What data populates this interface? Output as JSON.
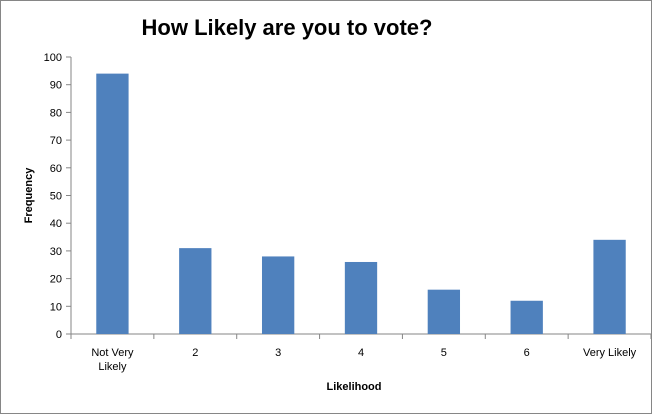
{
  "chart_data": {
    "type": "bar",
    "title": "How Likely are you to vote?",
    "xlabel": "Likelihood",
    "ylabel": "Frequency",
    "categories": [
      [
        "Not Very",
        "Likely"
      ],
      [
        "2"
      ],
      [
        "3"
      ],
      [
        "4"
      ],
      [
        "5"
      ],
      [
        "6"
      ],
      [
        "Very Likely"
      ]
    ],
    "values": [
      94,
      31,
      28,
      26,
      16,
      12,
      34
    ],
    "ylim": [
      0,
      100
    ],
    "yticks": [
      "0",
      "10",
      "20",
      "30",
      "40",
      "50",
      "60",
      "70",
      "80",
      "90",
      "100"
    ],
    "grid": false,
    "legend": "none",
    "bar_color": "#4F81BD"
  }
}
